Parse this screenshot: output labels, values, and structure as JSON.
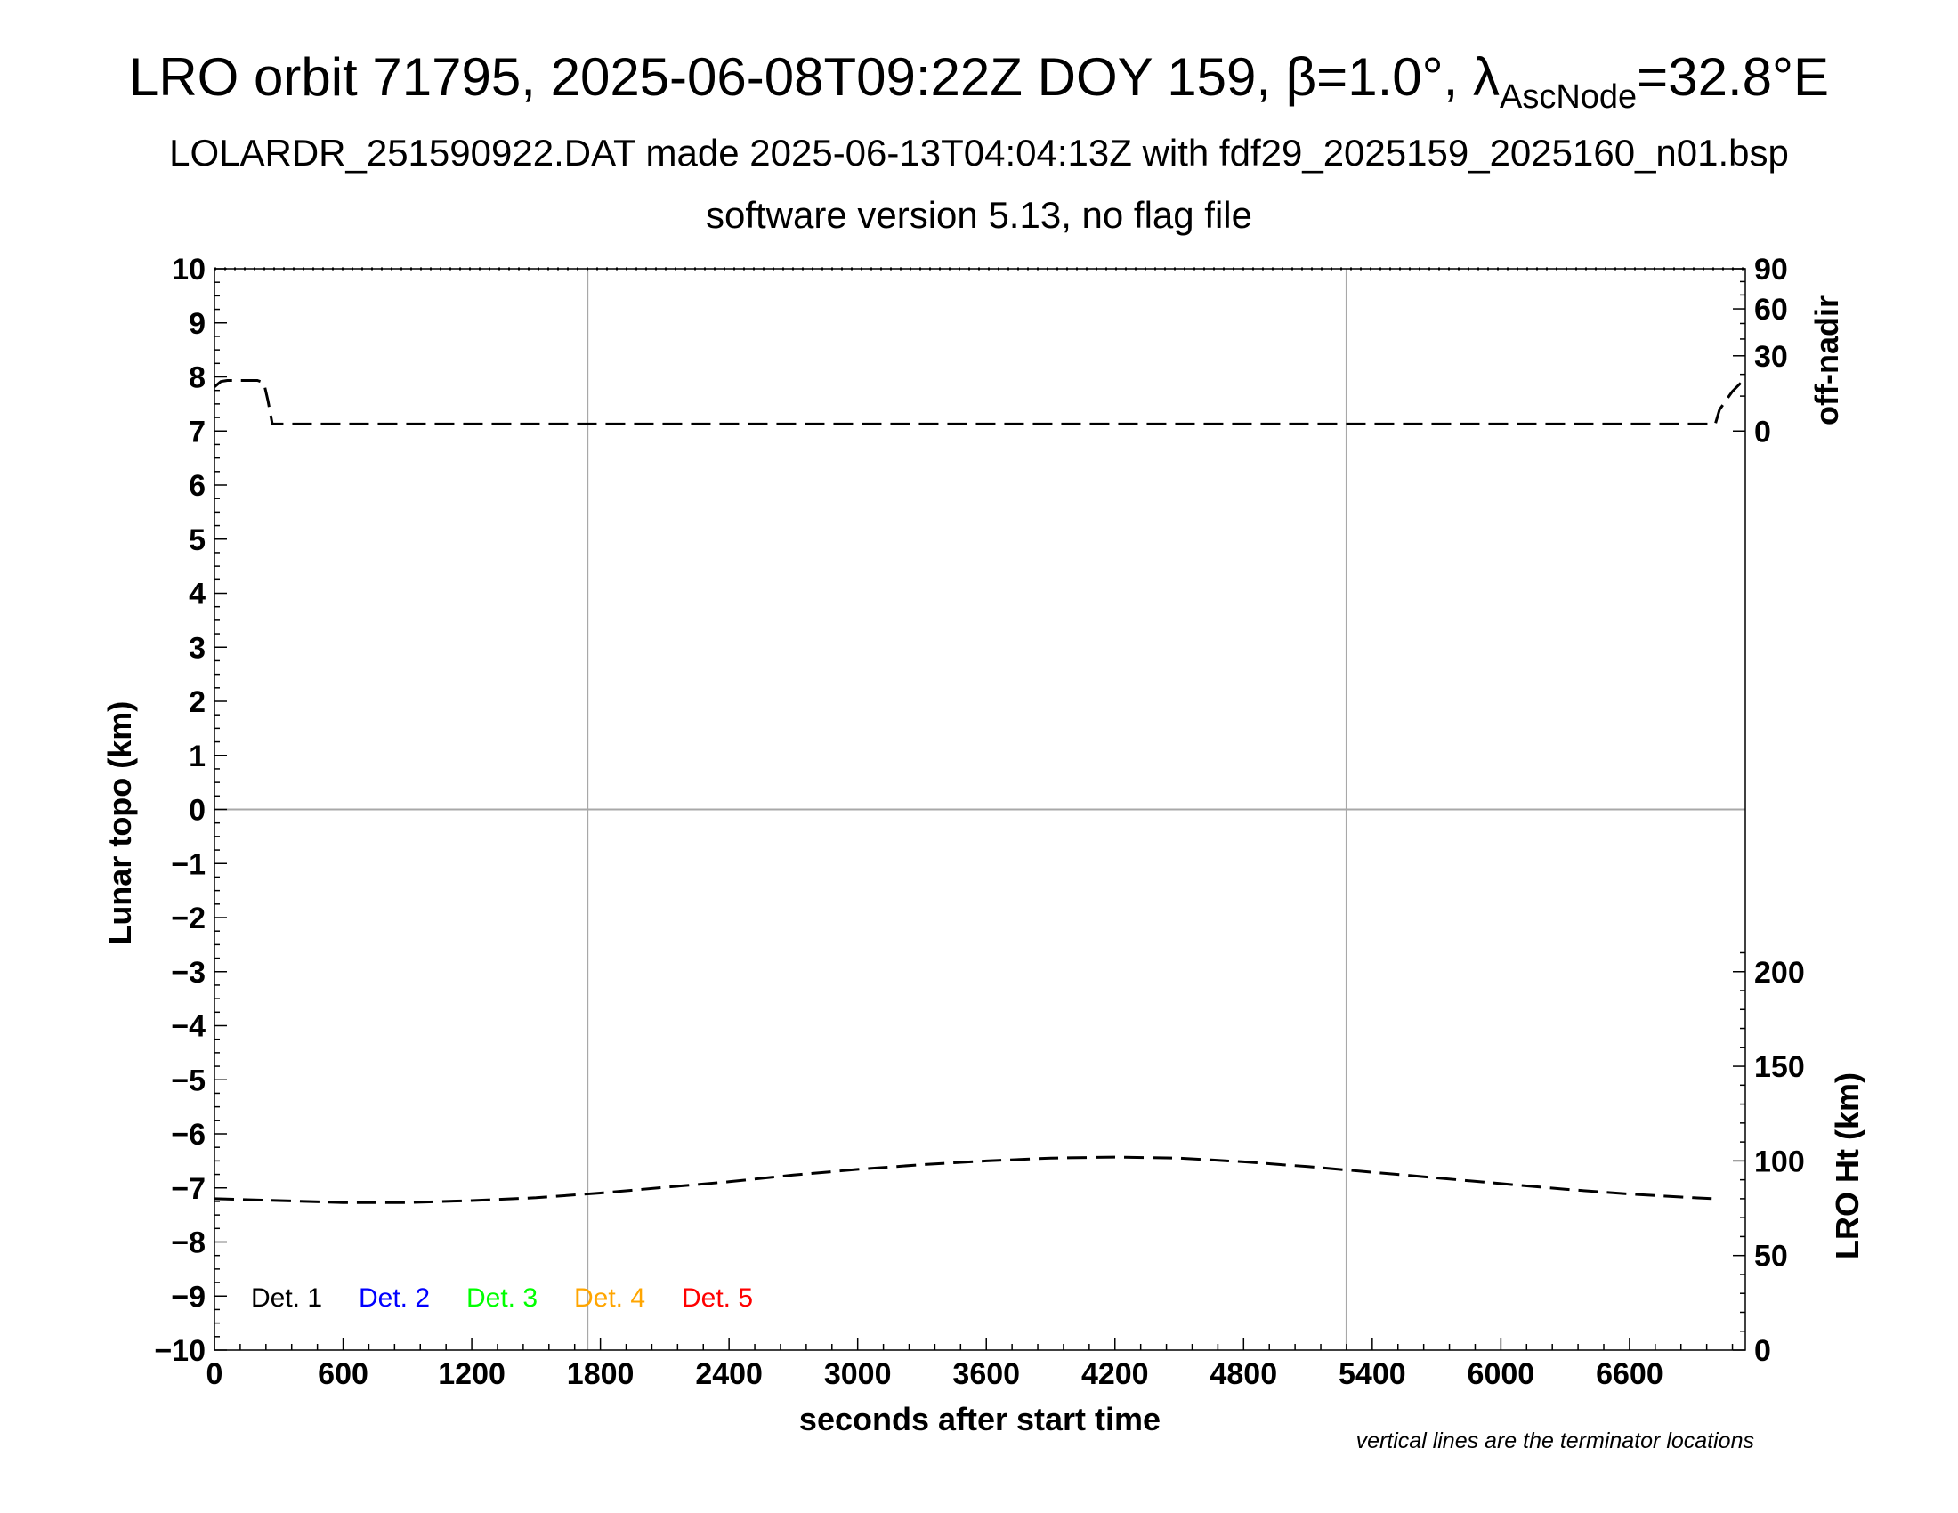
{
  "title": {
    "line1_pre": "LRO orbit 71795, 2025-06-08T09:22Z DOY 159, β=1.0°, λ",
    "line1_sub": "AscNode",
    "line1_post": "=32.8°E",
    "line2": "LOLARDR_251590922.DAT made 2025-06-13T04:04:13Z with fdf29_2025159_2025160_n01.bsp",
    "line3": "software version 5.13, no flag file"
  },
  "chart_data": {
    "type": "line",
    "xlabel": "seconds after start time",
    "ylabel_left": "Lunar topo (km)",
    "ylabel_right_top": "off-nadir",
    "ylabel_right_bottom": "LRO Ht (km)",
    "note": "vertical lines are the terminator locations",
    "xlim": [
      0,
      7140
    ],
    "ylim_left": [
      -10,
      10
    ],
    "x_ticks": [
      "0",
      "600",
      "1200",
      "1800",
      "2400",
      "3000",
      "3600",
      "4200",
      "4800",
      "5400",
      "6000",
      "6600"
    ],
    "x_tick_values": [
      0,
      600,
      1200,
      1800,
      2400,
      3000,
      3600,
      4200,
      4800,
      5400,
      6000,
      6600
    ],
    "y_ticks_left": [
      "−10",
      "−9",
      "−8",
      "−7",
      "−6",
      "−5",
      "−4",
      "−3",
      "−2",
      "−1",
      "0",
      "1",
      "2",
      "3",
      "4",
      "5",
      "6",
      "7",
      "8",
      "9",
      "10"
    ],
    "y_tick_values_left": [
      -10,
      -9,
      -8,
      -7,
      -6,
      -5,
      -4,
      -3,
      -2,
      -1,
      0,
      1,
      2,
      3,
      4,
      5,
      6,
      7,
      8,
      9,
      10
    ],
    "offnadir_ticks": [
      "0",
      "30",
      "60",
      "90"
    ],
    "offnadir_tick_values": [
      0,
      30,
      60,
      90
    ],
    "ht_ticks": [
      "0",
      "50",
      "100",
      "150",
      "200"
    ],
    "ht_tick_values": [
      0,
      50,
      100,
      150,
      200
    ],
    "terminator_x": [
      1740,
      5280
    ],
    "zero_line_y": 0,
    "legend": [
      {
        "name": "Det. 1",
        "color": "#000000"
      },
      {
        "name": "Det. 2",
        "color": "#0000ff"
      },
      {
        "name": "Det. 3",
        "color": "#00ff00"
      },
      {
        "name": "Det. 4",
        "color": "#ffa500"
      },
      {
        "name": "Det. 5",
        "color": "#ff0000"
      }
    ],
    "legend_placement": "bottom-left",
    "grid": false,
    "series": [
      {
        "axis": "off-nadir",
        "style": "dashed",
        "color": "#000000",
        "points": [
          [
            0,
            14
          ],
          [
            30,
            16.5
          ],
          [
            60,
            17
          ],
          [
            200,
            17
          ],
          [
            230,
            16
          ],
          [
            250,
            8
          ],
          [
            270,
            1
          ],
          [
            300,
            1
          ],
          [
            6960,
            1
          ],
          [
            7000,
            1
          ],
          [
            7020,
            5
          ],
          [
            7080,
            12
          ],
          [
            7140,
            18
          ]
        ]
      },
      {
        "axis": "LRO Ht",
        "style": "dashed",
        "color": "#000000",
        "points": [
          [
            0,
            80
          ],
          [
            300,
            79
          ],
          [
            600,
            78
          ],
          [
            900,
            78
          ],
          [
            1200,
            79
          ],
          [
            1500,
            80.5
          ],
          [
            1800,
            83
          ],
          [
            2100,
            86
          ],
          [
            2400,
            89
          ],
          [
            2700,
            92.5
          ],
          [
            3000,
            95.5
          ],
          [
            3300,
            98
          ],
          [
            3600,
            100
          ],
          [
            3900,
            101.5
          ],
          [
            4200,
            102
          ],
          [
            4500,
            101.5
          ],
          [
            4800,
            99.5
          ],
          [
            5100,
            97
          ],
          [
            5400,
            94
          ],
          [
            5700,
            91
          ],
          [
            6000,
            88
          ],
          [
            6300,
            85
          ],
          [
            6600,
            82.5
          ],
          [
            6900,
            80.5
          ],
          [
            7000,
            80
          ]
        ]
      }
    ]
  }
}
